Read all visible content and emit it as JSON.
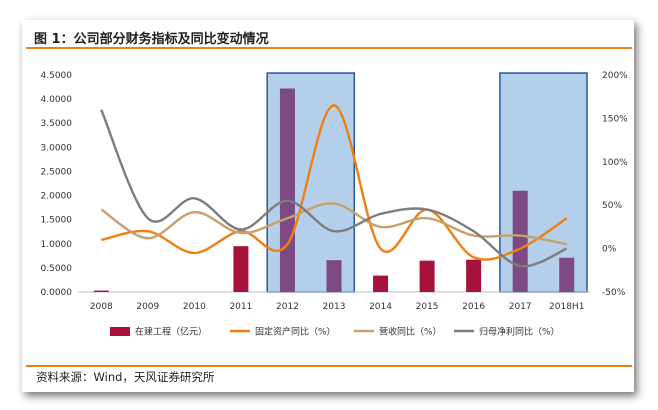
{
  "title": "图 1：公司部分财务指标及同比变动情况",
  "source": "资料来源：Wind，天风证券研究所",
  "chart_data": {
    "type": "bar",
    "categories": [
      "2008",
      "2009",
      "2010",
      "2011",
      "2012",
      "2013",
      "2014",
      "2015",
      "2016",
      "2017",
      "2018H1"
    ],
    "left_axis": {
      "min": 0,
      "max": 4.5,
      "ticks": [
        "0.0000",
        "0.5000",
        "1.0000",
        "1.5000",
        "2.0000",
        "2.5000",
        "3.0000",
        "3.5000",
        "4.0000",
        "4.5000"
      ]
    },
    "right_axis": {
      "min": -50,
      "max": 200,
      "ticks": [
        "-50%",
        "0%",
        "50%",
        "100%",
        "150%",
        "200%"
      ]
    },
    "highlight_categories": [
      "2012",
      "2013",
      "2017",
      "2018H1"
    ],
    "series": [
      {
        "name": "在建工程（亿元）",
        "type": "bar",
        "axis": "left",
        "color": "#a6123a",
        "values": [
          0.03,
          0,
          0,
          0.95,
          4.22,
          0.66,
          0.34,
          0.65,
          0.67,
          2.1,
          0.71
        ]
      },
      {
        "name": "固定资产同比（%）",
        "type": "line",
        "axis": "right",
        "color": "#f07f12",
        "values": [
          10,
          20,
          -5,
          20,
          5,
          165,
          0,
          45,
          -10,
          0,
          35
        ]
      },
      {
        "name": "营收同比（%）",
        "type": "line",
        "axis": "right",
        "color": "#c7a06c",
        "values": [
          45,
          12,
          42,
          18,
          35,
          52,
          25,
          35,
          15,
          15,
          5
        ]
      },
      {
        "name": "归母净利同比（%）",
        "type": "line",
        "axis": "right",
        "color": "#7d7d7d",
        "values": [
          160,
          35,
          58,
          22,
          55,
          20,
          40,
          45,
          20,
          -20,
          0
        ]
      }
    ]
  }
}
